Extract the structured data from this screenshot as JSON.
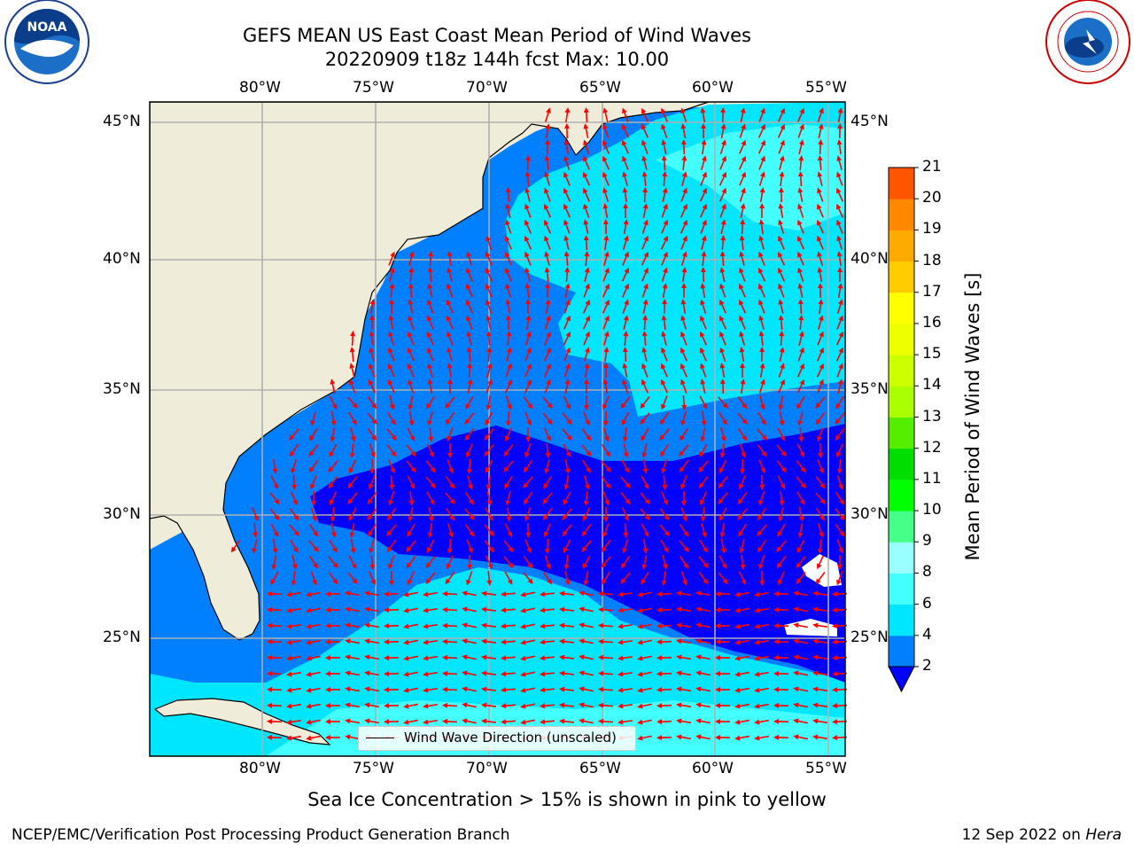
{
  "header": {
    "title_line1": "GEFS MEAN US East Coast Mean Period of Wind Waves",
    "title_line2": "20220909 t18z 144h fcst   Max: 10.00"
  },
  "logos": {
    "left": {
      "text": "NOAA",
      "ring_text": "NATIONAL OCEANIC AND ATMOSPHERIC ADMINISTRATION · U.S. DEPARTMENT OF COMMERCE",
      "icon": "noaa-logo"
    },
    "right": {
      "ring_text": "NATIONAL WEATHER SERVICE",
      "icon": "nws-logo"
    }
  },
  "map": {
    "lon_labels": [
      "80°W",
      "75°W",
      "70°W",
      "65°W",
      "60°W",
      "55°W"
    ],
    "lat_labels": [
      "45°N",
      "40°N",
      "35°N",
      "30°N",
      "25°N"
    ],
    "land_color": "#efedda",
    "water_color": "#ffffff",
    "grid_color": "#b0b0b0",
    "arrow_color": "#ff0000",
    "band_colors": {
      "2-4": "#0080ff",
      "4-6": "#00e6ff",
      "6-8": "#44ffff",
      "below-2": "#0000ff"
    }
  },
  "colorbar": {
    "label": "Mean Period of Wind Waves [s]",
    "ticks": [
      "2",
      "4",
      "6",
      "8",
      "9",
      "10",
      "11",
      "12",
      "13",
      "14",
      "15",
      "16",
      "17",
      "18",
      "19",
      "20",
      "21"
    ],
    "colors": [
      "#0080ff",
      "#00e6ff",
      "#44ffff",
      "#99ffff",
      "#44ff88",
      "#00ff00",
      "#00dd00",
      "#55ee00",
      "#aaff00",
      "#ccff00",
      "#eeff00",
      "#ffff00",
      "#ffcc00",
      "#ffaa00",
      "#ff8800",
      "#ff5500",
      "#ff2200"
    ],
    "under_color": "#0000ff"
  },
  "legend": {
    "text": "Wind Wave Direction (unscaled)"
  },
  "footer": {
    "note": "Sea Ice Concentration > 15% is shown in pink to yellow",
    "credit": "NCEP/EMC/Verification Post Processing Product Generation Branch",
    "date_prefix": "12 Sep 2022 on ",
    "date_host": "Hera"
  }
}
